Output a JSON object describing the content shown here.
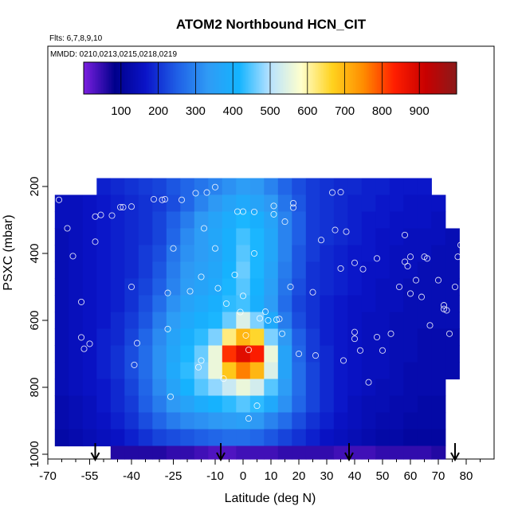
{
  "chart_data": {
    "type": "heatmap",
    "title": "ATOM2 Northbound HCN_CIT",
    "flights_label": "Flts: 6,7,8,9,10",
    "dates_label": "MMDD: 0210,0213,0215,0218,0219",
    "xlabel": "Latitude (deg N)",
    "ylabel": "PSXC (mbar)",
    "xlim": [
      -70,
      90
    ],
    "ylim": [
      1000,
      0
    ],
    "x_ticks": [
      -70,
      -55,
      -40,
      -25,
      -10,
      0,
      10,
      20,
      30,
      40,
      50,
      60,
      70,
      80
    ],
    "x_tick_labels": [
      "-70",
      "-55",
      "-40",
      "-25",
      "-10",
      "0",
      "10",
      "20",
      "30",
      "40",
      "50",
      "60",
      "70",
      "80"
    ],
    "x_minor_ticks": [
      -65,
      -60,
      -50,
      -45,
      -35,
      -30,
      -20,
      -15,
      -5,
      5,
      15,
      25,
      35,
      45,
      55,
      65,
      75,
      85
    ],
    "y_ticks": [
      200,
      400,
      600,
      800,
      1000
    ],
    "y_tick_labels": [
      "200",
      "400",
      "600",
      "800",
      "1000"
    ],
    "colorbar": {
      "range": [
        0,
        1000
      ],
      "tick_values": [
        100,
        200,
        300,
        400,
        500,
        600,
        700,
        800,
        900
      ],
      "tick_labels": [
        "100",
        "200",
        "300",
        "400",
        "500",
        "600",
        "700",
        "800",
        "900"
      ],
      "colors": [
        "#7b1fe0",
        "#00008b",
        "#0a14c8",
        "#1f5fe6",
        "#2f9bf5",
        "#14b4ff",
        "#b8e2ff",
        "#ffffcc",
        "#ffd21e",
        "#ff8c00",
        "#ff1e00",
        "#c80000",
        "#8b1a1a"
      ]
    },
    "field": {
      "lat_bins": [
        -65,
        -60,
        -55,
        -50,
        -45,
        -40,
        -35,
        -30,
        -25,
        -20,
        -15,
        -10,
        -5,
        0,
        5,
        10,
        15,
        20,
        25,
        30,
        35,
        40,
        45,
        50,
        55,
        60,
        65,
        70,
        75
      ],
      "pressure_bins": [
        200,
        250,
        300,
        350,
        400,
        450,
        500,
        550,
        600,
        650,
        700,
        750,
        800,
        850,
        900,
        950,
        1000
      ],
      "values": [
        [
          null,
          null,
          null,
          180,
          190,
          200,
          210,
          220,
          240,
          260,
          280,
          300,
          320,
          340,
          330,
          300,
          260,
          230,
          210,
          200,
          190,
          190,
          180,
          180,
          170,
          170,
          170,
          null,
          null
        ],
        [
          150,
          150,
          160,
          170,
          180,
          190,
          200,
          210,
          230,
          260,
          300,
          330,
          360,
          380,
          360,
          330,
          280,
          240,
          210,
          200,
          190,
          180,
          180,
          170,
          170,
          160,
          160,
          160,
          null
        ],
        [
          150,
          150,
          160,
          170,
          180,
          190,
          200,
          220,
          250,
          290,
          330,
          360,
          390,
          420,
          400,
          360,
          300,
          250,
          210,
          200,
          190,
          180,
          170,
          170,
          160,
          160,
          160,
          150,
          null
        ],
        [
          140,
          150,
          160,
          170,
          180,
          190,
          200,
          220,
          260,
          310,
          340,
          370,
          400,
          440,
          420,
          370,
          300,
          250,
          210,
          200,
          190,
          180,
          170,
          160,
          160,
          150,
          150,
          150,
          140
        ],
        [
          140,
          150,
          160,
          170,
          180,
          190,
          210,
          230,
          280,
          320,
          340,
          360,
          400,
          450,
          420,
          370,
          300,
          240,
          210,
          190,
          180,
          170,
          170,
          160,
          150,
          150,
          150,
          140,
          140
        ],
        [
          140,
          150,
          160,
          170,
          180,
          190,
          210,
          240,
          290,
          330,
          350,
          370,
          410,
          460,
          420,
          360,
          290,
          240,
          200,
          190,
          180,
          170,
          160,
          160,
          150,
          150,
          140,
          140,
          140
        ],
        [
          140,
          150,
          160,
          170,
          180,
          200,
          220,
          250,
          300,
          340,
          360,
          380,
          420,
          450,
          410,
          350,
          280,
          230,
          200,
          190,
          180,
          170,
          160,
          150,
          150,
          140,
          140,
          140,
          140
        ],
        [
          140,
          150,
          160,
          170,
          180,
          200,
          230,
          270,
          320,
          360,
          380,
          400,
          430,
          440,
          400,
          340,
          270,
          220,
          200,
          180,
          170,
          160,
          160,
          150,
          150,
          140,
          140,
          140,
          140
        ],
        [
          140,
          150,
          160,
          170,
          190,
          210,
          240,
          290,
          340,
          380,
          400,
          420,
          460,
          540,
          470,
          380,
          290,
          230,
          200,
          180,
          170,
          160,
          150,
          150,
          140,
          140,
          140,
          140,
          140
        ],
        [
          140,
          150,
          160,
          180,
          190,
          220,
          260,
          310,
          360,
          400,
          430,
          470,
          620,
          700,
          660,
          470,
          330,
          250,
          210,
          180,
          170,
          160,
          150,
          150,
          140,
          140,
          130,
          130,
          130
        ],
        [
          140,
          150,
          160,
          180,
          200,
          230,
          270,
          320,
          370,
          420,
          460,
          560,
          820,
          880,
          840,
          560,
          360,
          260,
          210,
          190,
          170,
          160,
          150,
          150,
          140,
          140,
          130,
          130,
          130
        ],
        [
          140,
          150,
          160,
          180,
          200,
          230,
          270,
          320,
          380,
          430,
          470,
          560,
          680,
          760,
          700,
          540,
          360,
          270,
          220,
          190,
          170,
          160,
          150,
          150,
          140,
          130,
          130,
          130,
          130
        ],
        [
          140,
          150,
          160,
          170,
          190,
          220,
          260,
          310,
          360,
          410,
          450,
          480,
          520,
          560,
          530,
          450,
          340,
          270,
          220,
          190,
          170,
          160,
          150,
          140,
          140,
          130,
          130,
          130,
          null
        ],
        [
          130,
          140,
          150,
          170,
          190,
          210,
          250,
          290,
          330,
          360,
          390,
          410,
          430,
          450,
          430,
          380,
          320,
          260,
          220,
          190,
          170,
          150,
          140,
          140,
          130,
          130,
          120,
          120,
          null
        ],
        [
          130,
          140,
          150,
          160,
          180,
          200,
          230,
          260,
          290,
          310,
          320,
          330,
          340,
          350,
          330,
          300,
          270,
          230,
          200,
          180,
          160,
          150,
          140,
          130,
          130,
          120,
          120,
          120,
          null
        ],
        [
          120,
          130,
          140,
          150,
          160,
          180,
          200,
          220,
          230,
          240,
          250,
          260,
          270,
          270,
          260,
          240,
          220,
          200,
          180,
          160,
          150,
          140,
          130,
          120,
          120,
          110,
          110,
          110,
          null
        ],
        [
          null,
          null,
          null,
          null,
          60,
          60,
          60,
          60,
          50,
          50,
          40,
          30,
          30,
          40,
          40,
          40,
          50,
          50,
          50,
          50,
          40,
          40,
          40,
          50,
          50,
          50,
          50,
          60,
          null
        ]
      ]
    },
    "sample_points": [
      [
        -66,
        240
      ],
      [
        -63,
        325
      ],
      [
        -61,
        408
      ],
      [
        -58,
        545
      ],
      [
        -58,
        651
      ],
      [
        -57,
        685
      ],
      [
        -55,
        670
      ],
      [
        -53,
        290
      ],
      [
        -51,
        285
      ],
      [
        -53,
        365
      ],
      [
        -47,
        287
      ],
      [
        -44,
        262
      ],
      [
        -43,
        262
      ],
      [
        -40,
        260
      ],
      [
        -40,
        500
      ],
      [
        -38,
        668
      ],
      [
        -39,
        733
      ],
      [
        -32,
        238
      ],
      [
        -29,
        240
      ],
      [
        -28,
        238
      ],
      [
        -27,
        518
      ],
      [
        -27,
        626
      ],
      [
        -26,
        828
      ],
      [
        -25,
        385
      ],
      [
        -22,
        240
      ],
      [
        -19,
        513
      ],
      [
        -17,
        220
      ],
      [
        -16,
        740
      ],
      [
        -15,
        720
      ],
      [
        -15,
        470
      ],
      [
        -14,
        325
      ],
      [
        -13,
        218
      ],
      [
        -10,
        202
      ],
      [
        -10,
        385
      ],
      [
        -9,
        504
      ],
      [
        -7,
        774
      ],
      [
        -6,
        550
      ],
      [
        -3,
        464
      ],
      [
        -2,
        275
      ],
      [
        -1,
        575
      ],
      [
        0,
        275
      ],
      [
        0,
        527
      ],
      [
        1,
        645
      ],
      [
        2,
        688
      ],
      [
        2,
        893
      ],
      [
        4,
        276
      ],
      [
        4,
        400
      ],
      [
        5,
        855
      ],
      [
        6,
        594
      ],
      [
        8,
        574
      ],
      [
        9,
        600
      ],
      [
        11,
        258
      ],
      [
        11,
        283
      ],
      [
        12,
        598
      ],
      [
        13,
        596
      ],
      [
        14,
        640
      ],
      [
        15,
        305
      ],
      [
        17,
        500
      ],
      [
        18,
        250
      ],
      [
        18,
        263
      ],
      [
        20,
        700
      ],
      [
        25,
        516
      ],
      [
        26,
        705
      ],
      [
        28,
        360
      ],
      [
        32,
        218
      ],
      [
        33,
        330
      ],
      [
        35,
        217
      ],
      [
        35,
        445
      ],
      [
        36,
        720
      ],
      [
        37,
        335
      ],
      [
        40,
        428
      ],
      [
        40,
        635
      ],
      [
        40,
        655
      ],
      [
        42,
        690
      ],
      [
        43,
        447
      ],
      [
        45,
        785
      ],
      [
        48,
        415
      ],
      [
        48,
        650
      ],
      [
        50,
        690
      ],
      [
        53,
        640
      ],
      [
        56,
        500
      ],
      [
        58,
        345
      ],
      [
        58,
        425
      ],
      [
        59,
        438
      ],
      [
        60,
        410
      ],
      [
        60,
        520
      ],
      [
        62,
        480
      ],
      [
        64,
        530
      ],
      [
        65,
        410
      ],
      [
        66,
        415
      ],
      [
        67,
        615
      ],
      [
        70,
        480
      ],
      [
        72,
        555
      ],
      [
        72,
        566
      ],
      [
        73,
        570
      ],
      [
        74,
        640
      ],
      [
        76,
        500
      ],
      [
        77,
        410
      ],
      [
        78,
        375
      ],
      [
        80,
        270
      ],
      [
        80,
        290
      ]
    ],
    "flight_markers_lat": [
      -53,
      -8,
      38,
      76
    ]
  }
}
